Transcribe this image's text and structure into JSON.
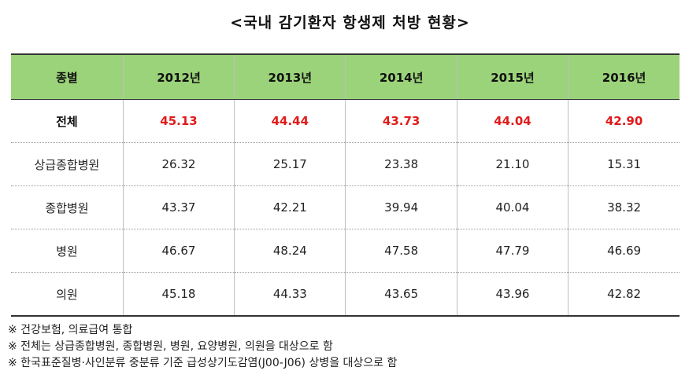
{
  "title": "<국내 감기환자 항생제 처방 현황>",
  "table": {
    "headers": [
      "종별",
      "2012년",
      "2013년",
      "2014년",
      "2015년",
      "2016년"
    ],
    "rows": [
      {
        "category": "전체",
        "values": [
          "45.13",
          "44.44",
          "43.73",
          "44.04",
          "42.90"
        ]
      },
      {
        "category": "상급종합병원",
        "values": [
          "26.32",
          "25.17",
          "23.38",
          "21.10",
          "15.31"
        ]
      },
      {
        "category": "종합병원",
        "values": [
          "43.37",
          "42.21",
          "39.94",
          "40.04",
          "38.32"
        ]
      },
      {
        "category": "병원",
        "values": [
          "46.67",
          "48.24",
          "47.58",
          "47.79",
          "46.69"
        ]
      },
      {
        "category": "의원",
        "values": [
          "45.18",
          "44.33",
          "43.65",
          "43.96",
          "42.82"
        ]
      }
    ],
    "highlight_color": "#e01b1b",
    "header_color": "#9bd37a"
  },
  "notes": [
    "※ 건강보험, 의료급여 통합",
    "※ 전체는 상급종합병원, 종합병원, 병원, 요양병원, 의원을 대상으로 함",
    "※ 한국표준질병·사인분류 중분류 기준 급성상기도감염(J00-J06) 상병을 대상으로 함"
  ]
}
